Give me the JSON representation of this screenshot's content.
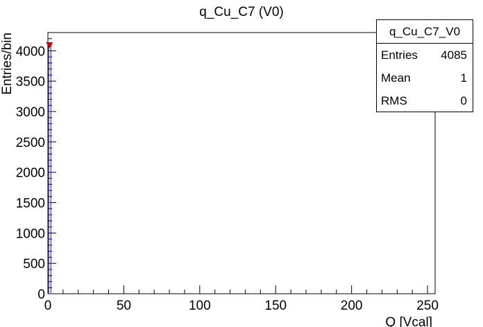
{
  "chart_data": {
    "type": "histogram",
    "title": "q_Cu_C7 (V0)",
    "xlabel": "Q [Vcal]",
    "ylabel": "Entries/bin",
    "xlim": [
      0,
      255
    ],
    "ylim": [
      0,
      4300
    ],
    "x_ticks": [
      0,
      50,
      100,
      150,
      200,
      250
    ],
    "y_ticks": [
      0,
      500,
      1000,
      1500,
      2000,
      2500,
      3000,
      3500,
      4000
    ],
    "series": [
      {
        "x": [
          1
        ],
        "values": [
          4085
        ],
        "color": "#cc0000"
      }
    ],
    "stats_box": {
      "name": "q_Cu_C7_V0",
      "rows": [
        {
          "label": "Entries",
          "value": "4085"
        },
        {
          "label": "Mean",
          "value": "1"
        },
        {
          "label": "RMS",
          "value": "0"
        }
      ],
      "placement": "top-right"
    }
  }
}
